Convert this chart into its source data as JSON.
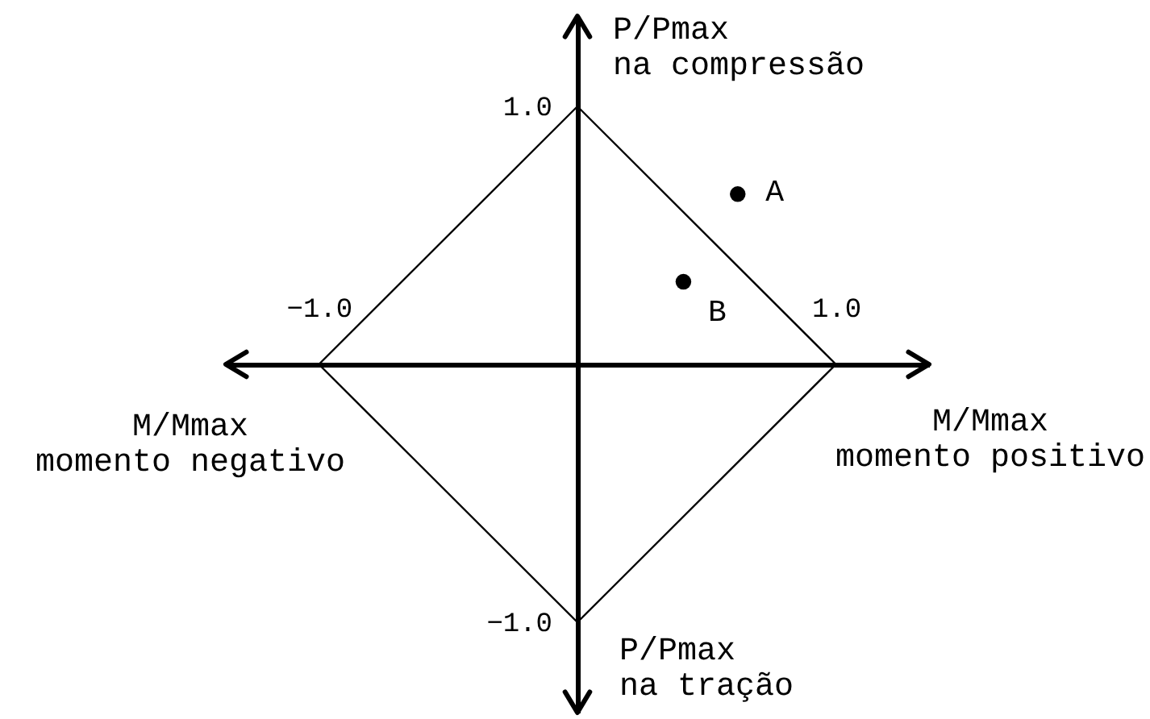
{
  "chart_data": {
    "type": "line",
    "xlabel": "M/Mmax\nmomento positivo",
    "ylabel": "P/Pmax\nna compressão",
    "annotations": [
      "M/Mmax\nmomento negativo",
      "P/Pmax\nna tração"
    ],
    "series": [
      {
        "color": "#000000",
        "x": [
          -1,
          0,
          1
        ],
        "values": [
          0,
          1,
          0
        ]
      },
      {
        "color": "#000000",
        "x": [
          -1,
          0,
          1
        ],
        "values": [
          0,
          -1,
          0
        ]
      },
      {
        "type": "scatter",
        "name": "A",
        "color": "#000000",
        "marker": "circle",
        "x": [
          0.62
        ],
        "values": [
          0.66
        ]
      },
      {
        "type": "scatter",
        "name": "B",
        "color": "#000000",
        "marker": "circle",
        "x": [
          0.41
        ],
        "values": [
          0.32
        ]
      }
    ],
    "xlim": [
      -1.36,
      1.36
    ],
    "ylim": [
      -1.35,
      1.35
    ],
    "xticks": [
      {
        "value": -1,
        "label": "−1.0"
      },
      {
        "value": 1,
        "label": "1.0"
      }
    ],
    "yticks": [
      {
        "value": -1,
        "label": "−1.0"
      },
      {
        "value": 1,
        "label": "1.0"
      }
    ],
    "grid": false
  }
}
